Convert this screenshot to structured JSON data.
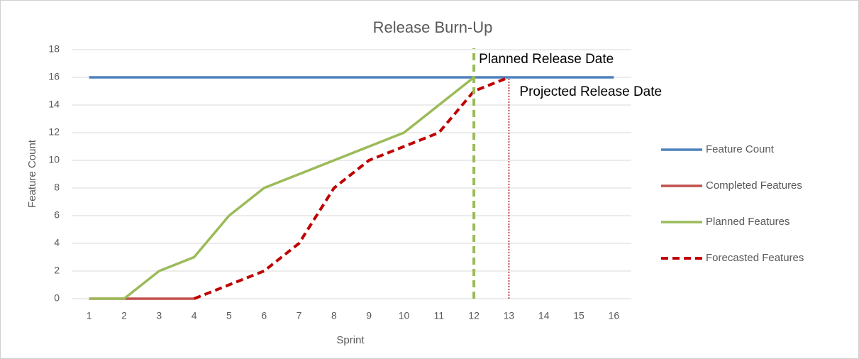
{
  "chart_data": {
    "type": "line",
    "title": "Release Burn-Up",
    "x_label": "Sprint",
    "y_label": "Feature Count",
    "x": [
      1,
      2,
      3,
      4,
      5,
      6,
      7,
      8,
      9,
      10,
      11,
      12,
      13,
      14,
      15,
      16
    ],
    "xlim": [
      0.5,
      16.5
    ],
    "xticks": [
      1,
      2,
      3,
      4,
      5,
      6,
      7,
      8,
      9,
      10,
      11,
      12,
      13,
      14,
      15,
      16
    ],
    "ylim": [
      0,
      18
    ],
    "yticks": [
      0,
      2,
      4,
      6,
      8,
      10,
      12,
      14,
      16,
      18
    ],
    "grid": true,
    "legend": "right",
    "series": [
      {
        "name": "Feature Count",
        "color": "#4f81bd",
        "dash": "solid",
        "values": [
          16,
          16,
          16,
          16,
          16,
          16,
          16,
          16,
          16,
          16,
          16,
          16,
          16,
          16,
          16,
          16
        ]
      },
      {
        "name": "Completed Features",
        "color": "#c0504d",
        "dash": "solid",
        "values": [
          0,
          0,
          0,
          0,
          null,
          null,
          null,
          null,
          null,
          null,
          null,
          null,
          null,
          null,
          null,
          null
        ]
      },
      {
        "name": "Planned Features",
        "color": "#9bbb59",
        "dash": "solid",
        "values": [
          0,
          0,
          2,
          3,
          6,
          8,
          9,
          10,
          11,
          12,
          14,
          16,
          null,
          null,
          null,
          null
        ]
      },
      {
        "name": "Forecasted Features",
        "color": "#c00000",
        "dash": "dashed",
        "values": [
          null,
          null,
          null,
          0,
          1,
          2,
          4,
          8,
          10,
          11,
          12,
          15,
          16,
          null,
          null,
          null
        ]
      }
    ],
    "annotations": [
      {
        "text": "Planned Release Date",
        "x": 12,
        "color": "#9bbb59",
        "style": "dashed"
      },
      {
        "text": "Projected Release Date",
        "x": 13,
        "y": 16,
        "color": "#c0504d",
        "style": "dotted"
      }
    ]
  }
}
